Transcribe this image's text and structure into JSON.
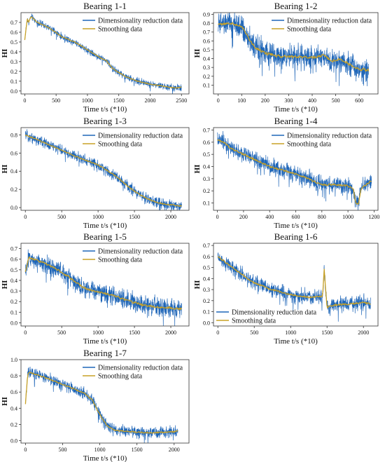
{
  "colors": {
    "raw": "#1f66b8",
    "smooth": "#c9a227",
    "frame": "#333333"
  },
  "chart_data": [
    {
      "type": "line",
      "title": "Bearing 1-1",
      "xlabel": "Time t/s (*10)",
      "ylabel": "HI",
      "xlim": [
        -60,
        2620
      ],
      "ylim": [
        -0.03,
        0.8
      ],
      "xticks": [
        0,
        500,
        1000,
        1500,
        2000,
        2500
      ],
      "yticks": [
        0.0,
        0.1,
        0.2,
        0.3,
        0.4,
        0.5,
        0.6,
        0.7
      ],
      "legend": "top-right",
      "series": [
        {
          "name": "Dimensionality reduction data",
          "noise": 0.03,
          "x": [
            0,
            40,
            60,
            100,
            200,
            400,
            600,
            800,
            1000,
            1100,
            1200,
            1300,
            1400,
            1600,
            1800,
            2000,
            2200,
            2400,
            2500
          ],
          "values": [
            0.52,
            0.74,
            0.7,
            0.76,
            0.7,
            0.64,
            0.55,
            0.5,
            0.42,
            0.38,
            0.34,
            0.31,
            0.23,
            0.15,
            0.1,
            0.07,
            0.05,
            0.03,
            0.04
          ]
        },
        {
          "name": "Smoothing data",
          "x": [
            0,
            40,
            60,
            100,
            200,
            400,
            600,
            800,
            1000,
            1100,
            1200,
            1300,
            1400,
            1600,
            1800,
            2000,
            2200,
            2400,
            2500
          ],
          "values": [
            0.52,
            0.74,
            0.7,
            0.76,
            0.7,
            0.64,
            0.55,
            0.5,
            0.42,
            0.38,
            0.34,
            0.31,
            0.23,
            0.15,
            0.1,
            0.07,
            0.05,
            0.03,
            0.04
          ]
        }
      ]
    },
    {
      "type": "line",
      "title": "Bearing 1-2",
      "xlabel": "Time t/s (*10)",
      "ylabel": "HI",
      "xlim": [
        -20,
        680
      ],
      "ylim": [
        0.0,
        0.92
      ],
      "xticks": [
        0,
        100,
        200,
        300,
        400,
        500,
        600
      ],
      "yticks": [
        0.1,
        0.2,
        0.3,
        0.4,
        0.5,
        0.6,
        0.7,
        0.8,
        0.9
      ],
      "legend": "top-right",
      "series": [
        {
          "name": "Dimensionality reduction data",
          "noise": 0.12,
          "x": [
            0,
            50,
            100,
            120,
            140,
            160,
            200,
            250,
            300,
            350,
            400,
            450,
            480,
            520,
            560,
            600,
            640
          ],
          "values": [
            0.78,
            0.8,
            0.76,
            0.68,
            0.58,
            0.52,
            0.46,
            0.43,
            0.42,
            0.42,
            0.41,
            0.44,
            0.37,
            0.4,
            0.33,
            0.28,
            0.27
          ]
        },
        {
          "name": "Smoothing data",
          "x": [
            0,
            50,
            100,
            120,
            140,
            160,
            200,
            250,
            300,
            350,
            400,
            450,
            480,
            520,
            560,
            600,
            640
          ],
          "values": [
            0.78,
            0.8,
            0.76,
            0.68,
            0.58,
            0.52,
            0.46,
            0.43,
            0.42,
            0.42,
            0.41,
            0.44,
            0.37,
            0.4,
            0.33,
            0.28,
            0.27
          ]
        }
      ]
    },
    {
      "type": "line",
      "title": "Bearing 1-3",
      "xlabel": "Time t/s (*10)",
      "ylabel": "HI",
      "xlim": [
        -60,
        2250
      ],
      "ylim": [
        -0.03,
        0.88
      ],
      "xticks": [
        0,
        500,
        1000,
        1500,
        2000
      ],
      "yticks": [
        0.0,
        0.2,
        0.4,
        0.6,
        0.8
      ],
      "legend": "top-right",
      "series": [
        {
          "name": "Dimensionality reduction data",
          "noise": 0.05,
          "x": [
            0,
            100,
            300,
            500,
            700,
            900,
            1000,
            1100,
            1200,
            1300,
            1400,
            1500,
            1600,
            1700,
            1800,
            1900,
            2000,
            2100,
            2150
          ],
          "values": [
            0.8,
            0.77,
            0.7,
            0.63,
            0.56,
            0.5,
            0.47,
            0.42,
            0.37,
            0.31,
            0.24,
            0.18,
            0.13,
            0.09,
            0.06,
            0.04,
            0.03,
            0.02,
            0.02
          ]
        },
        {
          "name": "Smoothing data",
          "x": [
            0,
            100,
            300,
            500,
            700,
            900,
            1000,
            1100,
            1200,
            1300,
            1400,
            1500,
            1600,
            1700,
            1800,
            1900,
            2000,
            2100,
            2150
          ],
          "values": [
            0.8,
            0.77,
            0.7,
            0.63,
            0.56,
            0.5,
            0.47,
            0.42,
            0.37,
            0.31,
            0.24,
            0.18,
            0.13,
            0.09,
            0.06,
            0.04,
            0.03,
            0.02,
            0.02
          ]
        }
      ]
    },
    {
      "type": "line",
      "title": "Bearing 1-4",
      "xlabel": "Time t/s (*10)",
      "ylabel": "HI",
      "xlim": [
        -30,
        1230
      ],
      "ylim": [
        0.04,
        0.72
      ],
      "xticks": [
        0,
        200,
        400,
        600,
        800,
        1000,
        1200
      ],
      "yticks": [
        0.1,
        0.2,
        0.3,
        0.4,
        0.5,
        0.6,
        0.7
      ],
      "legend": "top-right",
      "series": [
        {
          "name": "Dimensionality reduction data",
          "noise": 0.06,
          "x": [
            0,
            50,
            100,
            200,
            300,
            400,
            500,
            600,
            700,
            750,
            800,
            900,
            1000,
            1040,
            1060,
            1080,
            1100,
            1150,
            1180
          ],
          "values": [
            0.62,
            0.6,
            0.55,
            0.5,
            0.45,
            0.4,
            0.37,
            0.34,
            0.3,
            0.27,
            0.25,
            0.25,
            0.24,
            0.22,
            0.1,
            0.09,
            0.22,
            0.26,
            0.28
          ]
        },
        {
          "name": "Smoothing data",
          "x": [
            0,
            50,
            100,
            200,
            300,
            400,
            500,
            600,
            700,
            750,
            800,
            900,
            1000,
            1040,
            1060,
            1080,
            1100,
            1150,
            1180
          ],
          "values": [
            0.62,
            0.6,
            0.55,
            0.5,
            0.45,
            0.4,
            0.37,
            0.34,
            0.3,
            0.27,
            0.25,
            0.25,
            0.24,
            0.22,
            0.1,
            0.09,
            0.22,
            0.26,
            0.28
          ]
        }
      ]
    },
    {
      "type": "line",
      "title": "Bearing 1-5",
      "xlabel": "Time t/s (*10)",
      "ylabel": "HI",
      "xlim": [
        -60,
        2250
      ],
      "ylim": [
        -0.03,
        0.75
      ],
      "xticks": [
        0,
        500,
        1000,
        1500,
        2000
      ],
      "yticks": [
        0.0,
        0.1,
        0.2,
        0.3,
        0.4,
        0.5,
        0.6,
        0.7
      ],
      "legend": "top-right",
      "series": [
        {
          "name": "Dimensionality reduction data",
          "noise": 0.08,
          "x": [
            0,
            50,
            100,
            200,
            400,
            600,
            800,
            1000,
            1200,
            1400,
            1600,
            1800,
            2000,
            2150
          ],
          "values": [
            0.48,
            0.62,
            0.6,
            0.58,
            0.52,
            0.43,
            0.33,
            0.29,
            0.26,
            0.21,
            0.17,
            0.15,
            0.14,
            0.13
          ]
        },
        {
          "name": "Smoothing data",
          "x": [
            0,
            50,
            100,
            200,
            400,
            600,
            800,
            1000,
            1200,
            1400,
            1600,
            1800,
            2000,
            2150
          ],
          "values": [
            0.48,
            0.62,
            0.6,
            0.58,
            0.52,
            0.43,
            0.33,
            0.29,
            0.26,
            0.21,
            0.17,
            0.15,
            0.14,
            0.13
          ]
        }
      ]
    },
    {
      "type": "line",
      "title": "Bearing 1-6",
      "xlabel": "Time t/s (*10)",
      "ylabel": "HI",
      "xlim": [
        -60,
        2200
      ],
      "ylim": [
        -0.03,
        0.72
      ],
      "xticks": [
        0,
        500,
        1000,
        1500,
        2000
      ],
      "yticks": [
        0.0,
        0.1,
        0.2,
        0.3,
        0.4,
        0.5,
        0.6,
        0.7
      ],
      "legend": "bottom-left",
      "series": [
        {
          "name": "Dimensionality reduction data",
          "noise": 0.06,
          "x": [
            0,
            100,
            300,
            500,
            700,
            900,
            1100,
            1300,
            1440,
            1460,
            1480,
            1500,
            1600,
            1800,
            2000,
            2100
          ],
          "values": [
            0.6,
            0.55,
            0.45,
            0.36,
            0.31,
            0.27,
            0.24,
            0.23,
            0.24,
            0.5,
            0.3,
            0.14,
            0.16,
            0.17,
            0.18,
            0.17
          ]
        },
        {
          "name": "Smoothing data",
          "x": [
            0,
            100,
            300,
            500,
            700,
            900,
            1100,
            1300,
            1440,
            1460,
            1480,
            1500,
            1600,
            1800,
            2000,
            2100
          ],
          "values": [
            0.6,
            0.55,
            0.45,
            0.36,
            0.31,
            0.27,
            0.24,
            0.23,
            0.24,
            0.5,
            0.3,
            0.14,
            0.16,
            0.17,
            0.18,
            0.17
          ]
        }
      ]
    },
    {
      "type": "line",
      "title": "Bearing 1-7",
      "xlabel": "Time t/s (*10)",
      "ylabel": "HI",
      "xlim": [
        -60,
        2200
      ],
      "ylim": [
        -0.03,
        1.0
      ],
      "xticks": [
        0,
        500,
        1000,
        1500,
        2000
      ],
      "yticks": [
        0.0,
        0.2,
        0.4,
        0.6,
        0.8,
        1.0
      ],
      "legend": "top-right",
      "series": [
        {
          "name": "Dimensionality reduction data",
          "noise": 0.06,
          "x": [
            0,
            30,
            60,
            200,
            400,
            600,
            800,
            900,
            1000,
            1100,
            1200,
            1400,
            1600,
            1800,
            2000,
            2050
          ],
          "values": [
            0.45,
            0.82,
            0.84,
            0.8,
            0.73,
            0.66,
            0.58,
            0.5,
            0.32,
            0.18,
            0.13,
            0.11,
            0.1,
            0.1,
            0.11,
            0.12
          ]
        },
        {
          "name": "Smoothing data",
          "x": [
            0,
            30,
            60,
            200,
            400,
            600,
            800,
            900,
            1000,
            1100,
            1200,
            1400,
            1600,
            1800,
            2000,
            2050
          ],
          "values": [
            0.45,
            0.82,
            0.84,
            0.8,
            0.73,
            0.66,
            0.58,
            0.5,
            0.32,
            0.18,
            0.13,
            0.11,
            0.1,
            0.1,
            0.11,
            0.12
          ]
        }
      ]
    }
  ]
}
